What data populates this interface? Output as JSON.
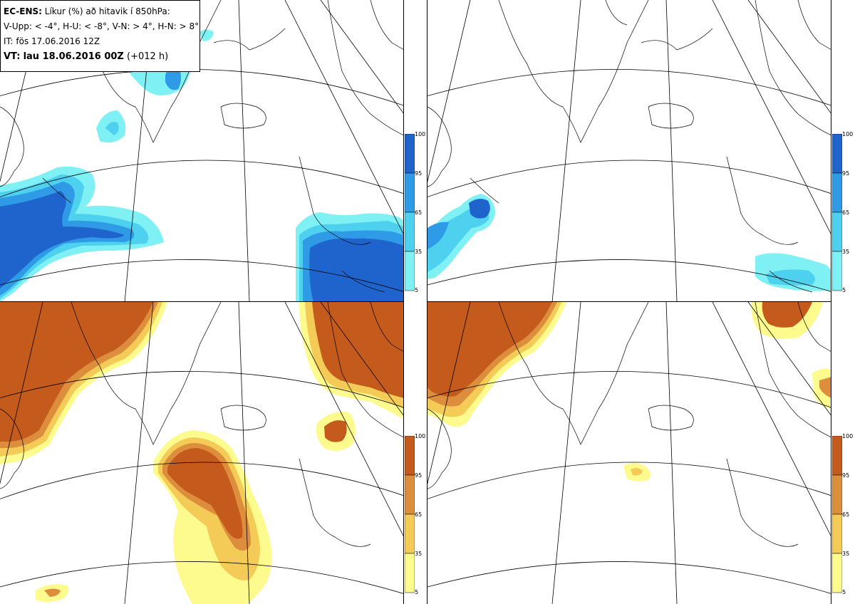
{
  "info": {
    "model": "EC-ENS:",
    "title_rest": "Líkur (%) að hitavik í 850hPa:",
    "thresholds": "V-Upp: < -4°, H-U: < -8°, V-N: > 4°, H-N: > 8°",
    "init_time": "IT: fös 17.06.2016 12Z",
    "valid_label": "VT:",
    "valid_time": "lau 18.06.2016 00Z",
    "lead": "(+012 h)"
  },
  "panels": [
    {
      "name": "V-Upp",
      "quantity": "Probability of 850hPa temperature anomaly < -4°"
    },
    {
      "name": "H-U",
      "quantity": "Probability of 850hPa temperature anomaly < -8°"
    },
    {
      "name": "V-N",
      "quantity": "Probability of 850hPa temperature anomaly > 4°"
    },
    {
      "name": "H-N",
      "quantity": "Probability of 850hPa temperature anomaly > 8°"
    }
  ],
  "colorbar_ticks": [
    "100",
    "95",
    "65",
    "35",
    "5"
  ],
  "colors": {
    "cold_scale": [
      "#7ff1f4",
      "#4ed1ef",
      "#2f9ae6",
      "#1f64cc"
    ],
    "warm_scale": [
      "#fdfb8e",
      "#f5cb57",
      "#dc8e3d",
      "#c45a1b"
    ],
    "coast": "#000000",
    "grid": "#000000"
  }
}
